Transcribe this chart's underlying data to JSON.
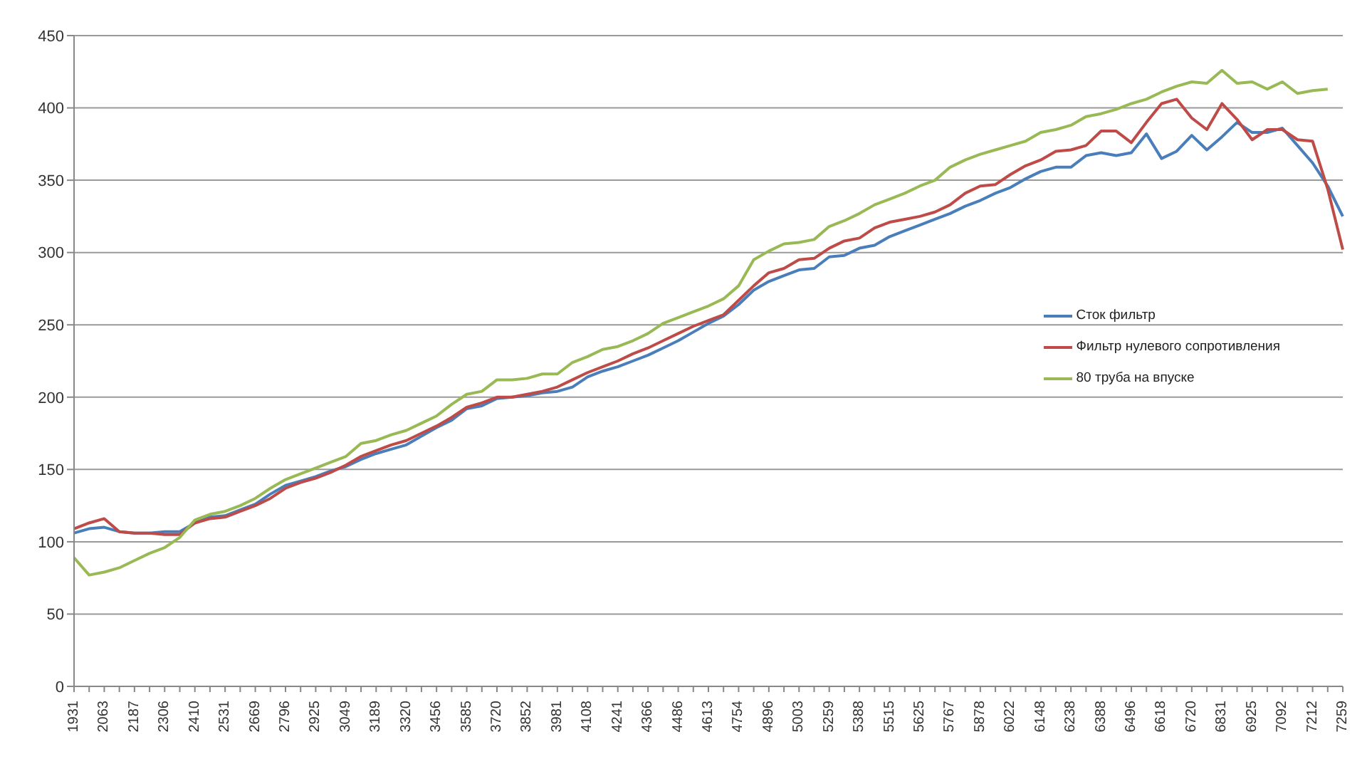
{
  "chart_data": {
    "type": "line",
    "categories": [
      "1931",
      null,
      "2063",
      null,
      "2187",
      null,
      "2306",
      null,
      "2410",
      null,
      "2531",
      null,
      "2669",
      null,
      "2796",
      null,
      "2925",
      null,
      "3049",
      null,
      "3189",
      null,
      "3320",
      null,
      "3456",
      null,
      "3585",
      null,
      "3720",
      null,
      "3852",
      null,
      "3981",
      null,
      "4108",
      null,
      "4241",
      null,
      "4366",
      null,
      "4486",
      null,
      "4613",
      null,
      "4754",
      null,
      "4896",
      null,
      "5003",
      null,
      "5259",
      null,
      "5388",
      null,
      "5515",
      null,
      "5625",
      null,
      "5767",
      null,
      "5878",
      null,
      "6022",
      null,
      "6148",
      null,
      "6238",
      null,
      "6388",
      null,
      "6496",
      null,
      "6618",
      null,
      "6720",
      null,
      "6831",
      null,
      "6925",
      null,
      "7092",
      null,
      "7212",
      null,
      "7259"
    ],
    "series": [
      {
        "name": "Сток фильтр",
        "color": "#4a7ebb",
        "values": [
          106,
          109,
          110,
          107,
          106,
          106,
          107,
          107,
          113,
          117,
          118,
          122,
          126,
          133,
          139,
          142,
          145,
          149,
          152,
          157,
          161,
          164,
          167,
          173,
          179,
          184,
          192,
          194,
          199,
          200,
          201,
          203,
          204,
          207,
          214,
          218,
          221,
          225,
          229,
          234,
          239,
          245,
          251,
          256,
          264,
          274,
          280,
          284,
          288,
          289,
          297,
          298,
          303,
          305,
          311,
          315,
          319,
          323,
          327,
          332,
          336,
          341,
          345,
          351,
          356,
          359,
          359,
          367,
          369,
          367,
          369,
          382,
          365,
          370,
          381,
          371,
          380,
          390,
          383,
          383,
          386,
          374,
          362,
          346,
          325
        ]
      },
      {
        "name": "Фильтр нулевого сопротивления",
        "color": "#be4b48",
        "values": [
          109,
          113,
          116,
          107,
          106,
          106,
          105,
          105,
          113,
          116,
          117,
          121,
          125,
          130,
          137,
          141,
          144,
          148,
          153,
          159,
          163,
          167,
          170,
          175,
          180,
          186,
          193,
          196,
          200,
          200,
          202,
          204,
          207,
          212,
          217,
          221,
          225,
          230,
          234,
          239,
          244,
          249,
          253,
          257,
          267,
          277,
          286,
          289,
          295,
          296,
          303,
          308,
          310,
          317,
          321,
          323,
          325,
          328,
          333,
          341,
          346,
          347,
          354,
          360,
          364,
          370,
          371,
          374,
          384,
          384,
          376,
          390,
          403,
          406,
          393,
          385,
          403,
          392,
          378,
          385,
          385,
          378,
          377,
          344,
          302
        ]
      },
      {
        "name": "80 труба на впуске",
        "color": "#98b954",
        "values": [
          89,
          77,
          79,
          82,
          87,
          92,
          96,
          103,
          115,
          119,
          121,
          125,
          130,
          137,
          143,
          147,
          151,
          155,
          159,
          168,
          170,
          174,
          177,
          182,
          187,
          195,
          202,
          204,
          212,
          212,
          213,
          216,
          216,
          224,
          228,
          233,
          235,
          239,
          244,
          251,
          255,
          259,
          263,
          268,
          277,
          295,
          301,
          306,
          307,
          309,
          318,
          322,
          327,
          333,
          337,
          341,
          346,
          350,
          359,
          364,
          368,
          371,
          374,
          377,
          383,
          385,
          388,
          394,
          396,
          399,
          403,
          406,
          411,
          415,
          418,
          417,
          426,
          417,
          418,
          413,
          418,
          410,
          412,
          413,
          null
        ]
      }
    ],
    "ylim": [
      0,
      450
    ],
    "yticks": [
      0,
      50,
      100,
      150,
      200,
      250,
      300,
      350,
      400,
      450
    ],
    "grid": "y",
    "legend": "right",
    "marker": "none",
    "line_style": "solid"
  }
}
